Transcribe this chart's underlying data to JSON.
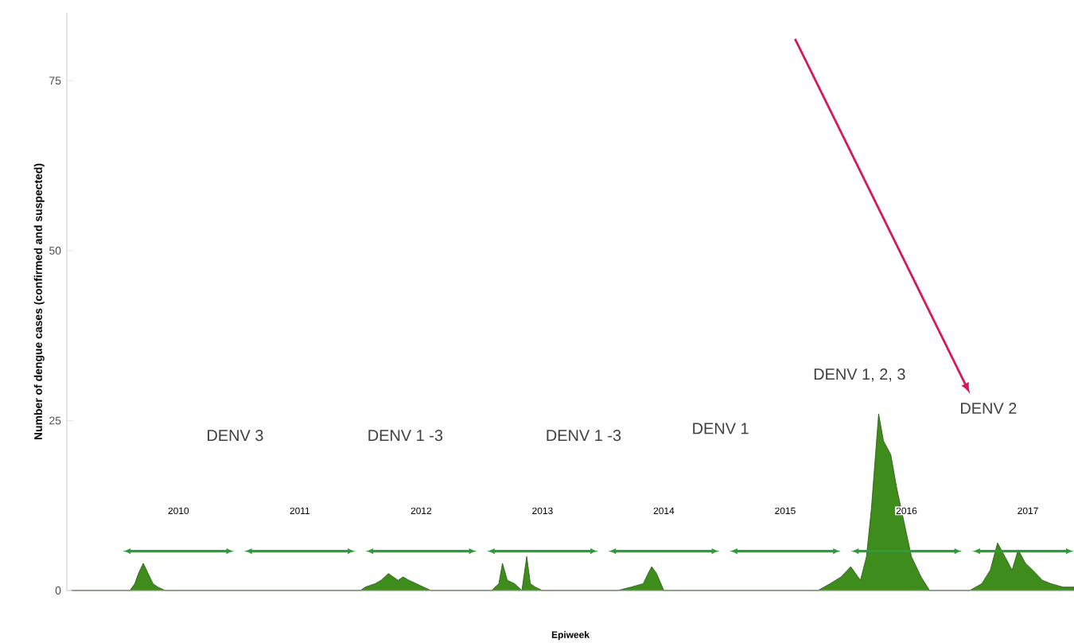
{
  "chart_data": {
    "type": "area",
    "xlabel": "Epiweek",
    "ylabel": "Number of dengue cases (confirmed and suspected)",
    "x": [
      2009.12,
      2009.6,
      2009.64,
      2009.67,
      2009.71,
      2009.75,
      2009.79,
      2009.83,
      2009.89,
      2011.5,
      2011.54,
      2011.62,
      2011.67,
      2011.73,
      2011.77,
      2011.81,
      2011.85,
      2011.9,
      2011.96,
      2012.02,
      2012.08,
      2012.58,
      2012.64,
      2012.67,
      2012.71,
      2012.77,
      2012.83,
      2012.87,
      2012.9,
      2012.94,
      2013.0,
      2013.62,
      2013.73,
      2013.83,
      2013.87,
      2013.9,
      2013.94,
      2014.0,
      2015.27,
      2015.37,
      2015.46,
      2015.54,
      2015.62,
      2015.67,
      2015.71,
      2015.77,
      2015.81,
      2015.87,
      2015.92,
      2015.98,
      2016.04,
      2016.12,
      2016.19,
      2016.52,
      2016.62,
      2016.69,
      2016.75,
      2016.81,
      2016.87,
      2016.92,
      2016.98,
      2017.04,
      2017.12,
      2017.19,
      2017.29,
      2017.38
    ],
    "values": [
      0,
      0,
      1,
      2.5,
      4,
      2.5,
      1,
      0.5,
      0,
      0,
      0.5,
      1,
      1.5,
      2.5,
      2,
      1.5,
      2,
      1.5,
      1,
      0.5,
      0,
      0,
      1,
      4,
      1.5,
      1,
      0,
      5,
      1,
      0.5,
      0,
      0,
      0.5,
      1,
      2.5,
      3.5,
      2.5,
      0,
      0,
      1,
      2,
      3.5,
      1.5,
      5,
      12,
      26,
      22,
      20,
      15,
      10,
      5,
      2,
      0,
      0,
      1,
      3,
      7,
      5,
      3,
      6,
      4,
      3,
      1.5,
      1,
      0.5,
      0.5
    ],
    "color": "#3d8c1c",
    "xlim": [
      2009.08,
      2017.38
    ],
    "ylim": [
      0,
      85
    ],
    "yticks": [
      0,
      25,
      50,
      75
    ],
    "xticks": [
      2010,
      2011,
      2012,
      2013,
      2014,
      2015,
      2016,
      2017
    ],
    "annotations": [
      "DENV 3",
      "DENV 1 -3",
      "DENV 1 -3",
      "DENV 1",
      "DENV 1, 2, 3",
      "DENV 2"
    ]
  }
}
